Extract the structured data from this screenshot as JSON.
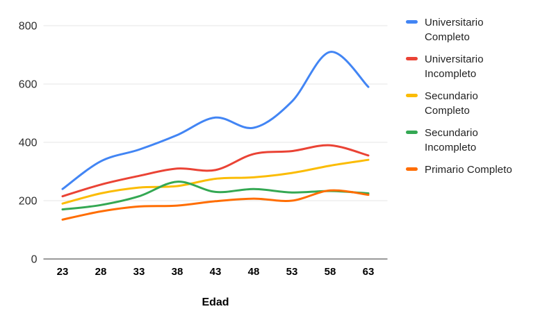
{
  "chart_data": {
    "type": "line",
    "title": "",
    "xlabel": "Edad",
    "ylabel": "",
    "x": [
      23,
      28,
      33,
      38,
      43,
      48,
      53,
      58,
      63
    ],
    "x_tick_labels": [
      "23",
      "28",
      "33",
      "38",
      "43",
      "48",
      "53",
      "58",
      "63"
    ],
    "ylim": [
      0,
      800
    ],
    "yticks": [
      0,
      200,
      400,
      600,
      800
    ],
    "grid": true,
    "smooth_lines": true,
    "legend_position": "right",
    "series": [
      {
        "name": "Universitario Completo",
        "color": "#4285F4",
        "values": [
          240,
          335,
          375,
          425,
          485,
          450,
          540,
          710,
          590
        ]
      },
      {
        "name": "Universitario Incompleto",
        "color": "#EA4335",
        "values": [
          215,
          255,
          285,
          310,
          305,
          360,
          370,
          390,
          355
        ]
      },
      {
        "name": "Secundario Completo",
        "color": "#FBBC04",
        "values": [
          190,
          225,
          245,
          250,
          275,
          280,
          295,
          320,
          340
        ]
      },
      {
        "name": "Secundario Incompleto",
        "color": "#34A853",
        "values": [
          170,
          185,
          215,
          265,
          230,
          240,
          228,
          233,
          225
        ]
      },
      {
        "name": "Primario Completo",
        "color": "#FF6D01",
        "values": [
          135,
          163,
          180,
          183,
          198,
          207,
          200,
          235,
          220
        ]
      }
    ],
    "colors": {
      "grid_line": "#e6e6e6",
      "baseline": "#333333",
      "y_tick_text": "#2e2e2e",
      "x_tick_text": "#000000",
      "background": "#ffffff"
    }
  }
}
